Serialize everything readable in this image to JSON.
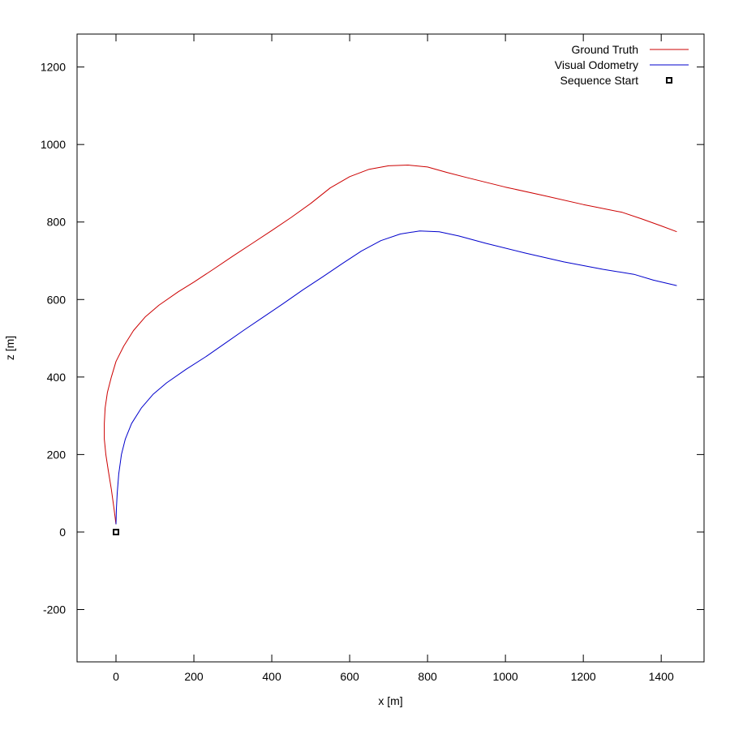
{
  "chart_data": {
    "type": "line",
    "xlabel": "x [m]",
    "ylabel": "z [m]",
    "xlim": [
      -100,
      1510
    ],
    "ylim": [
      -335,
      1285
    ],
    "xticks": [
      0,
      200,
      400,
      600,
      800,
      1000,
      1200,
      1400
    ],
    "yticks": [
      -200,
      0,
      200,
      400,
      600,
      800,
      1000,
      1200
    ],
    "legend_position": "top-right",
    "grid": false,
    "series": [
      {
        "name": "Ground Truth",
        "color": "#cc0000",
        "x": [
          0,
          -5,
          -12,
          -20,
          -26,
          -30,
          -30,
          -28,
          -22,
          -12,
          0,
          20,
          45,
          75,
          110,
          160,
          200,
          250,
          300,
          350,
          400,
          450,
          500,
          550,
          600,
          650,
          700,
          750,
          800,
          850,
          900,
          1000,
          1100,
          1200,
          1300,
          1350,
          1400,
          1440
        ],
        "y": [
          20,
          60,
          110,
          160,
          200,
          240,
          280,
          320,
          360,
          400,
          440,
          480,
          520,
          555,
          585,
          620,
          645,
          678,
          712,
          745,
          778,
          812,
          848,
          888,
          917,
          936,
          945,
          947,
          942,
          928,
          915,
          890,
          868,
          845,
          825,
          808,
          790,
          775
        ]
      },
      {
        "name": "Visual Odometry",
        "color": "#0000cc",
        "x": [
          0,
          1,
          3,
          7,
          14,
          24,
          40,
          65,
          95,
          130,
          180,
          230,
          280,
          330,
          380,
          430,
          480,
          530,
          580,
          630,
          680,
          730,
          780,
          830,
          880,
          950,
          1050,
          1150,
          1250,
          1330,
          1380,
          1440
        ],
        "y": [
          20,
          60,
          100,
          150,
          200,
          240,
          280,
          320,
          355,
          385,
          420,
          452,
          487,
          522,
          556,
          590,
          625,
          658,
          692,
          725,
          752,
          769,
          777,
          775,
          764,
          745,
          720,
          697,
          678,
          665,
          650,
          636
        ]
      }
    ],
    "markers": [
      {
        "name": "Sequence Start",
        "x": 0,
        "y": 0,
        "shape": "square",
        "color": "#000000"
      }
    ]
  }
}
